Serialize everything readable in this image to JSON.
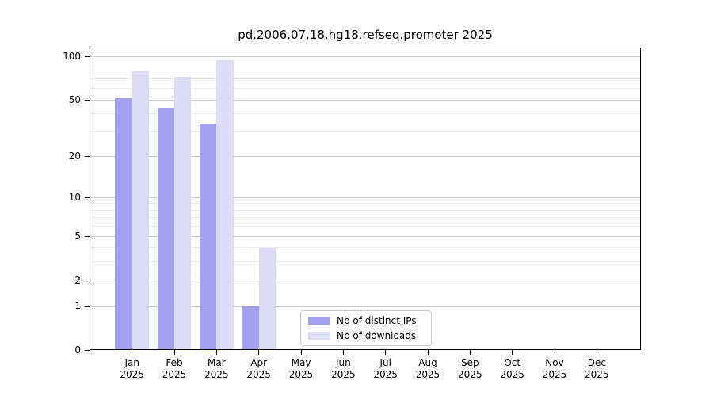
{
  "chart_data": {
    "type": "bar",
    "title": "pd.2006.07.18.hg18.refseq.promoter 2025",
    "categories": [
      "Jan",
      "Feb",
      "Mar",
      "Apr",
      "May",
      "Jun",
      "Jul",
      "Aug",
      "Sep",
      "Oct",
      "Nov",
      "Dec"
    ],
    "category_year": "2025",
    "series": [
      {
        "name": "Nb of distinct IPs",
        "color": "#a2a2f0",
        "values": [
          51,
          44,
          34,
          1,
          0,
          0,
          0,
          0,
          0,
          0,
          0,
          0
        ]
      },
      {
        "name": "Nb of downloads",
        "color": "#dcdcf8",
        "values": [
          79,
          72,
          94,
          4,
          0,
          0,
          0,
          0,
          0,
          0,
          0,
          0
        ]
      }
    ],
    "yscale": "log1p",
    "yticks": [
      0,
      1,
      2,
      5,
      10,
      20,
      50,
      100
    ],
    "minor_yticks": [
      3,
      4,
      6,
      7,
      8,
      9,
      30,
      40,
      60,
      70,
      80,
      90
    ],
    "ylim": [
      0,
      115
    ],
    "xlabel": "",
    "ylabel": "",
    "grid": true,
    "legend_position": "lower-center",
    "axis_color": "#000000",
    "major_grid_color": "#cfcfcf",
    "minor_grid_color": "#ebebeb",
    "background_color": "#ffffff"
  }
}
